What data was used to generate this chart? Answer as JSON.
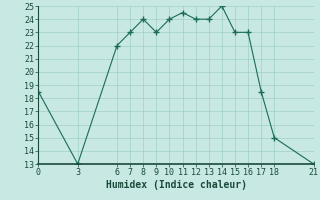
{
  "x": [
    0,
    3,
    6,
    7,
    8,
    9,
    10,
    11,
    12,
    13,
    14,
    15,
    16,
    17,
    18,
    21
  ],
  "y": [
    18.5,
    13,
    22,
    23,
    24,
    23,
    24,
    24.5,
    24,
    24,
    25,
    23,
    23,
    18.5,
    15,
    13
  ],
  "line_color": "#1a6b5a",
  "marker_color": "#1a6b5a",
  "bg_color": "#c8e8e4",
  "grid_color": "#a0cfc8",
  "xlabel": "Humidex (Indice chaleur)",
  "xlim": [
    0,
    21
  ],
  "ylim": [
    13,
    25
  ],
  "xticks": [
    0,
    3,
    6,
    7,
    8,
    9,
    10,
    11,
    12,
    13,
    14,
    15,
    16,
    17,
    18,
    21
  ],
  "yticks": [
    13,
    14,
    15,
    16,
    17,
    18,
    19,
    20,
    21,
    22,
    23,
    24,
    25
  ],
  "font_color": "#1a4a3a",
  "xlabel_fontsize": 7,
  "tick_fontsize": 6
}
